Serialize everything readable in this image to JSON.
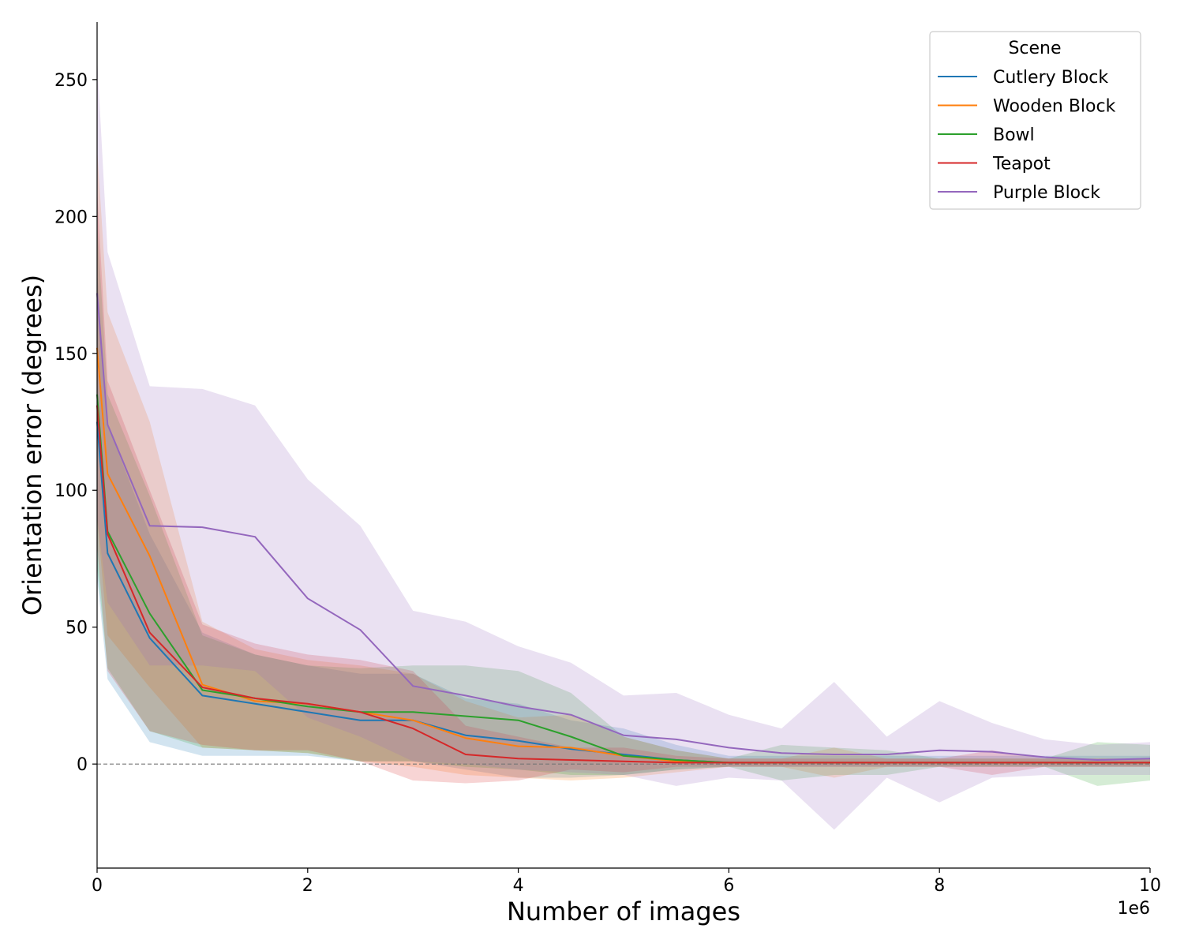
{
  "chart_data": {
    "type": "line",
    "xlabel": "Number of images",
    "ylabel": "Orientation error (degrees)",
    "x_offset_label": "1e6",
    "xlim": [
      0,
      10
    ],
    "ylim": [
      -38,
      271
    ],
    "x_ticks": [
      0,
      2,
      4,
      6,
      8,
      10
    ],
    "y_ticks": [
      0,
      50,
      100,
      150,
      200,
      250
    ],
    "grid": false,
    "reference_line_y": 0,
    "legend": {
      "title": "Scene",
      "placement": "top-right"
    },
    "x": [
      0,
      0.1,
      0.5,
      1,
      1.5,
      2,
      2.5,
      3,
      3.5,
      4,
      4.5,
      5,
      5.5,
      6,
      6.5,
      7,
      7.5,
      8,
      8.5,
      9,
      9.5,
      10
    ],
    "series": [
      {
        "name": "Cutlery Block",
        "color": "#1f77b4",
        "values": [
          125,
          77,
          46,
          25,
          22,
          19,
          16,
          16,
          10.5,
          8.5,
          5.5,
          3.5,
          1.5,
          0.5,
          0.5,
          0.5,
          0.5,
          0.5,
          0.5,
          0.5,
          0.5,
          0.5
        ],
        "lower": [
          68,
          31,
          8,
          3,
          3,
          3,
          1,
          1,
          -2,
          -5,
          -5,
          -4,
          -2,
          -1,
          -1,
          -1,
          -1,
          -1,
          -1,
          -1,
          -1,
          -1
        ],
        "upper": [
          180,
          124,
          84,
          48,
          40,
          36,
          33,
          33,
          24,
          22,
          16,
          13,
          7,
          3,
          3,
          3,
          3,
          3,
          3,
          3,
          3,
          3
        ]
      },
      {
        "name": "Wooden Block",
        "color": "#ff7f0e",
        "values": [
          152,
          106,
          76,
          29,
          23,
          22,
          19,
          16,
          9.5,
          6.5,
          6,
          3,
          1,
          0.5,
          0.5,
          0.5,
          0.5,
          0.5,
          0.5,
          0.5,
          0.5,
          0.5
        ],
        "lower": [
          90,
          47,
          28,
          6,
          5,
          4,
          1,
          -1,
          -4,
          -5,
          -6,
          -5,
          -3,
          -1,
          -1,
          -5,
          -1,
          -1,
          -1,
          -1,
          -1,
          -1
        ],
        "upper": [
          225,
          165,
          125,
          52,
          42,
          38,
          36,
          33,
          23,
          17,
          18,
          10,
          5,
          2,
          2,
          6,
          2,
          2,
          2,
          2,
          2,
          2
        ]
      },
      {
        "name": "Bowl",
        "color": "#2ca02c",
        "values": [
          135,
          85,
          55,
          27,
          24,
          21,
          19,
          19,
          17.5,
          16,
          10,
          3,
          1.5,
          0.5,
          0.5,
          0.5,
          0.5,
          0.5,
          0.5,
          0.5,
          0.5,
          0.5
        ],
        "lower": [
          72,
          35,
          12,
          6,
          5,
          4,
          1,
          1,
          -1,
          -2,
          -4,
          -4,
          -2,
          -1,
          -6,
          -4,
          -4,
          -1,
          -1,
          -1,
          -8,
          -6
        ],
        "upper": [
          198,
          135,
          98,
          47,
          40,
          36,
          35,
          36,
          36,
          34,
          26,
          10,
          5,
          2,
          7,
          6,
          5,
          2,
          2,
          2,
          8,
          7
        ]
      },
      {
        "name": "Teapot",
        "color": "#d62728",
        "values": [
          131,
          84,
          48,
          28,
          24,
          22,
          19,
          13,
          3.5,
          2,
          1.5,
          1,
          0.5,
          0.5,
          0.5,
          0.5,
          0.5,
          0.5,
          0.5,
          0.5,
          0.5,
          0.5
        ],
        "lower": [
          80,
          34,
          12,
          7,
          5,
          5,
          1,
          -6,
          -7,
          -6,
          -2,
          -3,
          -1,
          -1,
          -1,
          -1,
          -1,
          -1,
          -4,
          -1,
          -1,
          -1
        ],
        "upper": [
          210,
          140,
          100,
          51,
          44,
          40,
          38,
          34,
          14,
          10,
          6,
          6,
          3,
          2,
          2,
          2,
          2,
          2,
          5,
          2,
          2,
          2
        ]
      },
      {
        "name": "Purple Block",
        "color": "#9467bd",
        "values": [
          172,
          124,
          87,
          86.5,
          83,
          60.5,
          49,
          28.5,
          25,
          21,
          18,
          10.5,
          9,
          6,
          4,
          3.5,
          3.5,
          5,
          4.5,
          2.5,
          1.5,
          2
        ],
        "lower": [
          90,
          59,
          36,
          36,
          34,
          17,
          10,
          1,
          0,
          -2,
          -3,
          -4,
          -8,
          -5,
          -6,
          -24,
          -5,
          -14,
          -5,
          -4,
          -4,
          -4
        ],
        "upper": [
          258,
          187,
          138,
          137,
          131,
          104,
          87,
          56,
          52,
          43,
          37,
          25,
          26,
          18,
          13,
          30,
          10,
          23,
          15,
          9,
          7,
          8
        ]
      }
    ]
  }
}
